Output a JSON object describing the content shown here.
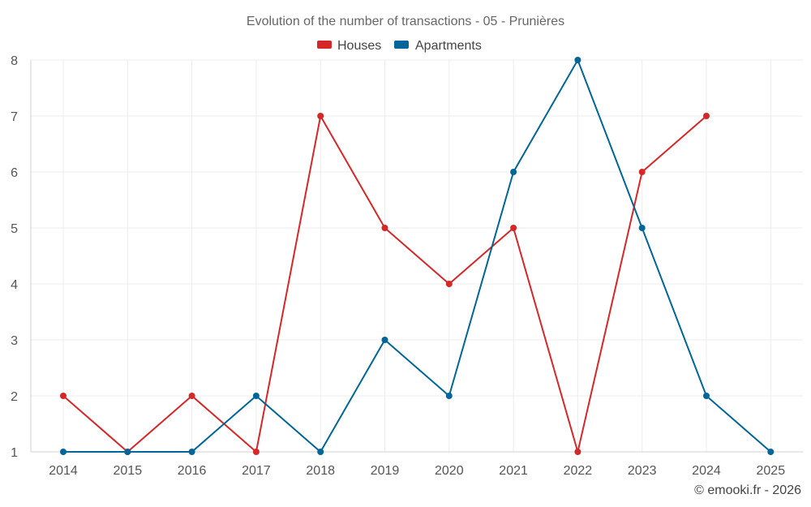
{
  "chart_data": {
    "type": "line",
    "title": "Evolution of the number of transactions - 05 - Prunières",
    "categories": [
      "2014",
      "2015",
      "2016",
      "2017",
      "2018",
      "2019",
      "2020",
      "2021",
      "2022",
      "2023",
      "2024",
      "2025"
    ],
    "ylim": [
      1,
      8
    ],
    "yticks": [
      1,
      2,
      3,
      4,
      5,
      6,
      7,
      8
    ],
    "xlabel": "",
    "ylabel": "",
    "grid": true,
    "legend_position": "top-center",
    "series": [
      {
        "name": "Houses",
        "color": "#d62728",
        "values": [
          2,
          1,
          2,
          1,
          7,
          5,
          4,
          5,
          1,
          6,
          7,
          null
        ]
      },
      {
        "name": "Apartments",
        "color": "#006699",
        "values": [
          1,
          1,
          1,
          2,
          1,
          3,
          2,
          6,
          8,
          5,
          2,
          1
        ]
      }
    ]
  },
  "credit": "© emooki.fr - 2026"
}
